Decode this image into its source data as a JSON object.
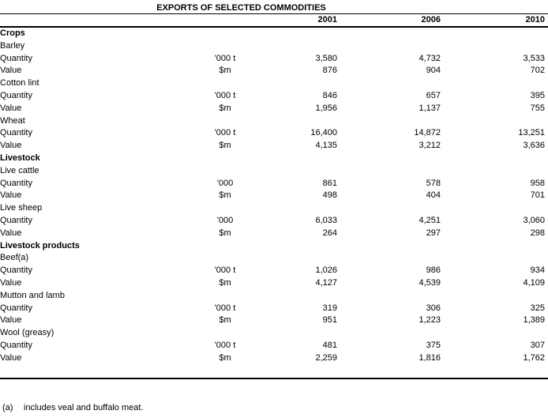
{
  "title": "EXPORTS OF SELECTED COMMODITIES",
  "table": {
    "columns": [
      "2001",
      "2006",
      "2010"
    ],
    "sections": [
      {
        "label": "Crops",
        "commodities": [
          {
            "name": "Barley",
            "rows": [
              {
                "label": "Quantity",
                "unit": "'000 t",
                "values": [
                  "3,580",
                  "4,732",
                  "3,533"
                ]
              },
              {
                "label": "Value",
                "unit": "$m",
                "values": [
                  "876",
                  "904",
                  "702"
                ]
              }
            ]
          },
          {
            "name": "Cotton lint",
            "rows": [
              {
                "label": "Quantity",
                "unit": "'000 t",
                "values": [
                  "846",
                  "657",
                  "395"
                ]
              },
              {
                "label": "Value",
                "unit": "$m",
                "values": [
                  "1,956",
                  "1,137",
                  "755"
                ]
              }
            ]
          },
          {
            "name": "Wheat",
            "rows": [
              {
                "label": "Quantity",
                "unit": "'000 t",
                "values": [
                  "16,400",
                  "14,872",
                  "13,251"
                ]
              },
              {
                "label": "Value",
                "unit": "$m",
                "values": [
                  "4,135",
                  "3,212",
                  "3,636"
                ]
              }
            ]
          }
        ]
      },
      {
        "label": "Livestock",
        "commodities": [
          {
            "name": "Live cattle",
            "rows": [
              {
                "label": "Quantity",
                "unit": "'000",
                "values": [
                  "861",
                  "578",
                  "958"
                ]
              },
              {
                "label": "Value",
                "unit": "$m",
                "values": [
                  "498",
                  "404",
                  "701"
                ]
              }
            ]
          },
          {
            "name": "Live sheep",
            "rows": [
              {
                "label": "Quantity",
                "unit": "'000",
                "values": [
                  "6,033",
                  "4,251",
                  "3,060"
                ]
              },
              {
                "label": "Value",
                "unit": "$m",
                "values": [
                  "264",
                  "297",
                  "298"
                ]
              }
            ]
          }
        ]
      },
      {
        "label": "Livestock products",
        "commodities": [
          {
            "name": "Beef(a)",
            "rows": [
              {
                "label": "Quantity",
                "unit": "'000 t",
                "values": [
                  "1,026",
                  "986",
                  "934"
                ]
              },
              {
                "label": "Value",
                "unit": "$m",
                "values": [
                  "4,127",
                  "4,539",
                  "4,109"
                ]
              }
            ]
          },
          {
            "name": "Mutton and lamb",
            "rows": [
              {
                "label": "Quantity",
                "unit": "'000 t",
                "values": [
                  "319",
                  "306",
                  "325"
                ]
              },
              {
                "label": "Value",
                "unit": "$m",
                "values": [
                  "951",
                  "1,223",
                  "1,389"
                ]
              }
            ]
          },
          {
            "name": "Wool (greasy)",
            "rows": [
              {
                "label": "Quantity",
                "unit": "'000 t",
                "values": [
                  "481",
                  "375",
                  "307"
                ]
              },
              {
                "label": "Value",
                "unit": "$m",
                "values": [
                  "2,259",
                  "1,816",
                  "1,762"
                ]
              }
            ]
          }
        ]
      }
    ]
  },
  "footnote": {
    "marker": "(a)",
    "text": "includes veal and buffalo meat."
  },
  "colors": {
    "text": "#000000",
    "background": "#ffffff",
    "rule": "#000000"
  }
}
